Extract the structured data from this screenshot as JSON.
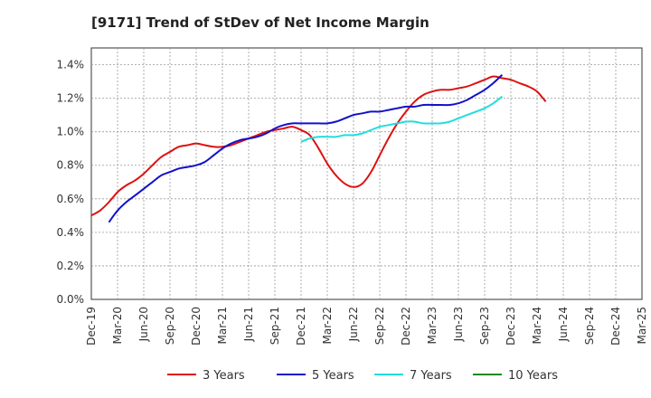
{
  "chart_data": {
    "type": "line",
    "title": "[9171]  Trend of StDev of Net Income Margin",
    "xlabel": "",
    "ylabel": "",
    "y_tick_labels": [
      "0.0%",
      "0.2%",
      "0.4%",
      "0.6%",
      "0.8%",
      "1.0%",
      "1.2%",
      "1.4%"
    ],
    "y_ticks": [
      0.0,
      0.2,
      0.4,
      0.6,
      0.8,
      1.0,
      1.2,
      1.4
    ],
    "ylim": [
      0.0,
      1.5
    ],
    "x_tick_labels": [
      "Dec-19",
      "Mar-20",
      "Jun-20",
      "Sep-20",
      "Dec-20",
      "Mar-21",
      "Jun-21",
      "Sep-21",
      "Dec-21",
      "Mar-22",
      "Jun-22",
      "Sep-22",
      "Dec-22",
      "Mar-23",
      "Jun-23",
      "Sep-23",
      "Dec-23",
      "Mar-24",
      "Jun-24",
      "Sep-24",
      "Dec-24",
      "Mar-25"
    ],
    "xlim": [
      0,
      21
    ],
    "grid": true,
    "legend_position": "bottom",
    "series": [
      {
        "name": "3 Years",
        "color": "#dd1111",
        "points": [
          [
            0,
            0.5
          ],
          [
            0.33,
            0.53
          ],
          [
            0.67,
            0.58
          ],
          [
            1,
            0.64
          ],
          [
            1.33,
            0.68
          ],
          [
            1.67,
            0.71
          ],
          [
            2,
            0.75
          ],
          [
            2.33,
            0.8
          ],
          [
            2.67,
            0.85
          ],
          [
            3,
            0.88
          ],
          [
            3.33,
            0.91
          ],
          [
            3.67,
            0.92
          ],
          [
            4,
            0.93
          ],
          [
            4.33,
            0.92
          ],
          [
            4.67,
            0.91
          ],
          [
            5,
            0.91
          ],
          [
            5.33,
            0.92
          ],
          [
            5.67,
            0.94
          ],
          [
            6,
            0.96
          ],
          [
            6.33,
            0.98
          ],
          [
            6.67,
            1.0
          ],
          [
            7,
            1.01
          ],
          [
            7.33,
            1.02
          ],
          [
            7.67,
            1.03
          ],
          [
            8,
            1.01
          ],
          [
            8.33,
            0.98
          ],
          [
            8.67,
            0.9
          ],
          [
            9,
            0.81
          ],
          [
            9.33,
            0.74
          ],
          [
            9.67,
            0.69
          ],
          [
            10,
            0.67
          ],
          [
            10.33,
            0.69
          ],
          [
            10.67,
            0.76
          ],
          [
            11,
            0.86
          ],
          [
            11.33,
            0.96
          ],
          [
            11.67,
            1.05
          ],
          [
            12,
            1.12
          ],
          [
            12.33,
            1.18
          ],
          [
            12.67,
            1.22
          ],
          [
            13,
            1.24
          ],
          [
            13.33,
            1.25
          ],
          [
            13.67,
            1.25
          ],
          [
            14,
            1.26
          ],
          [
            14.33,
            1.27
          ],
          [
            14.67,
            1.29
          ],
          [
            15,
            1.31
          ],
          [
            15.33,
            1.33
          ],
          [
            15.67,
            1.32
          ],
          [
            16,
            1.31
          ],
          [
            16.33,
            1.29
          ],
          [
            16.67,
            1.27
          ],
          [
            17,
            1.24
          ],
          [
            17.33,
            1.18
          ]
        ]
      },
      {
        "name": "5 Years",
        "color": "#1111cc",
        "points": [
          [
            0.67,
            0.46
          ],
          [
            1,
            0.53
          ],
          [
            1.33,
            0.58
          ],
          [
            1.67,
            0.62
          ],
          [
            2,
            0.66
          ],
          [
            2.33,
            0.7
          ],
          [
            2.67,
            0.74
          ],
          [
            3,
            0.76
          ],
          [
            3.33,
            0.78
          ],
          [
            3.67,
            0.79
          ],
          [
            4,
            0.8
          ],
          [
            4.33,
            0.82
          ],
          [
            4.67,
            0.86
          ],
          [
            5,
            0.9
          ],
          [
            5.33,
            0.93
          ],
          [
            5.67,
            0.95
          ],
          [
            6,
            0.96
          ],
          [
            6.33,
            0.97
          ],
          [
            6.67,
            0.99
          ],
          [
            7,
            1.02
          ],
          [
            7.33,
            1.04
          ],
          [
            7.67,
            1.05
          ],
          [
            8,
            1.05
          ],
          [
            8.33,
            1.05
          ],
          [
            8.67,
            1.05
          ],
          [
            9,
            1.05
          ],
          [
            9.33,
            1.06
          ],
          [
            9.67,
            1.08
          ],
          [
            10,
            1.1
          ],
          [
            10.33,
            1.11
          ],
          [
            10.67,
            1.12
          ],
          [
            11,
            1.12
          ],
          [
            11.33,
            1.13
          ],
          [
            11.67,
            1.14
          ],
          [
            12,
            1.15
          ],
          [
            12.33,
            1.15
          ],
          [
            12.67,
            1.16
          ],
          [
            13,
            1.16
          ],
          [
            13.33,
            1.16
          ],
          [
            13.67,
            1.16
          ],
          [
            14,
            1.17
          ],
          [
            14.33,
            1.19
          ],
          [
            14.67,
            1.22
          ],
          [
            15,
            1.25
          ],
          [
            15.33,
            1.29
          ],
          [
            15.67,
            1.34
          ]
        ]
      },
      {
        "name": "7 Years",
        "color": "#22dddd",
        "points": [
          [
            8,
            0.94
          ],
          [
            8.33,
            0.96
          ],
          [
            8.67,
            0.97
          ],
          [
            9,
            0.97
          ],
          [
            9.33,
            0.97
          ],
          [
            9.67,
            0.98
          ],
          [
            10,
            0.98
          ],
          [
            10.33,
            0.99
          ],
          [
            10.67,
            1.01
          ],
          [
            11,
            1.03
          ],
          [
            11.33,
            1.04
          ],
          [
            11.67,
            1.05
          ],
          [
            12,
            1.06
          ],
          [
            12.33,
            1.06
          ],
          [
            12.67,
            1.05
          ],
          [
            13,
            1.05
          ],
          [
            13.33,
            1.05
          ],
          [
            13.67,
            1.06
          ],
          [
            14,
            1.08
          ],
          [
            14.33,
            1.1
          ],
          [
            14.67,
            1.12
          ],
          [
            15,
            1.14
          ],
          [
            15.33,
            1.17
          ],
          [
            15.67,
            1.21
          ]
        ]
      },
      {
        "name": "10 Years",
        "color": "#228822",
        "points": []
      }
    ]
  }
}
